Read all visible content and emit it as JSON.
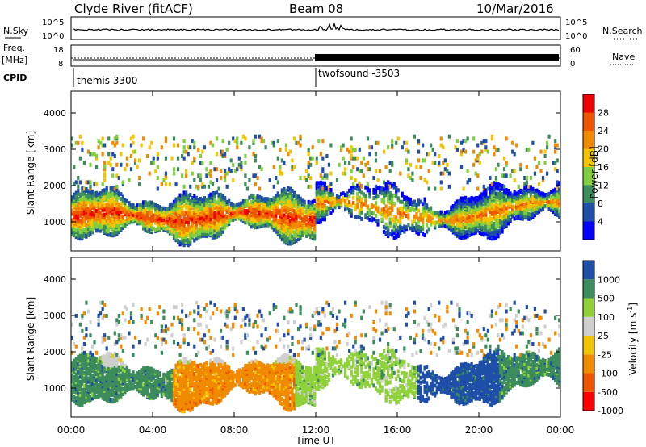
{
  "header": {
    "site": "Clyde River (fitACF)",
    "beam": "Beam 08",
    "date": "10/Mar/2016"
  },
  "strip_labels": {
    "nsky": "N.Sky",
    "nsky_ticks": [
      "10^5",
      "10^0"
    ],
    "nsearch": "N.Search",
    "nsearch_ticks": [
      "10^5",
      "10^0"
    ],
    "freq": "Freq.",
    "freq_unit": "[MHz]",
    "freq_ticks": [
      "18",
      "8"
    ],
    "nave": "Nave",
    "nave_ticks": [
      "60",
      "0"
    ],
    "cpid": "CPID",
    "cpid_modes": [
      "themis 3300",
      "twofsound -3503"
    ]
  },
  "colors": {
    "power": [
      "#0000ff",
      "#1f4fa8",
      "#3c8c5c",
      "#7fcf40",
      "#f2c500",
      "#f08a00",
      "#ee5500",
      "#ee0000"
    ],
    "velocity": [
      "#ff0000",
      "#ee5500",
      "#f08a00",
      "#f2c500",
      "#cfcfcf",
      "#8fd23a",
      "#3c8c5c",
      "#1f4fa8"
    ]
  },
  "chart_data": [
    {
      "type": "heatmap",
      "panel": "power",
      "ylabel": "Slant Range [km]",
      "yticks": [
        1000,
        2000,
        3000,
        4000
      ],
      "ylim": [
        200,
        4600
      ],
      "xlim": [
        0,
        24
      ],
      "xticks": [
        "00:00",
        "04:00",
        "08:00",
        "12:00",
        "16:00",
        "20:00",
        "00:00"
      ],
      "colorbar": {
        "label": "Power [dB]",
        "ticks": [
          "28",
          "24",
          "20",
          "16",
          "12",
          "8",
          "4"
        ]
      }
    },
    {
      "type": "heatmap",
      "panel": "velocity",
      "ylabel": "Slant Range [km]",
      "yticks": [
        1000,
        2000,
        3000,
        4000
      ],
      "ylim": [
        200,
        4600
      ],
      "xlim": [
        0,
        24
      ],
      "xticks": [
        "00:00",
        "04:00",
        "08:00",
        "12:00",
        "16:00",
        "20:00",
        "00:00"
      ],
      "xlabel": "Time UT",
      "colorbar": {
        "label": "Velocity [m s^-1]",
        "ticks": [
          "1000",
          "500",
          "100",
          "25",
          "-25",
          "-100",
          "-500",
          "-1000"
        ]
      }
    }
  ]
}
